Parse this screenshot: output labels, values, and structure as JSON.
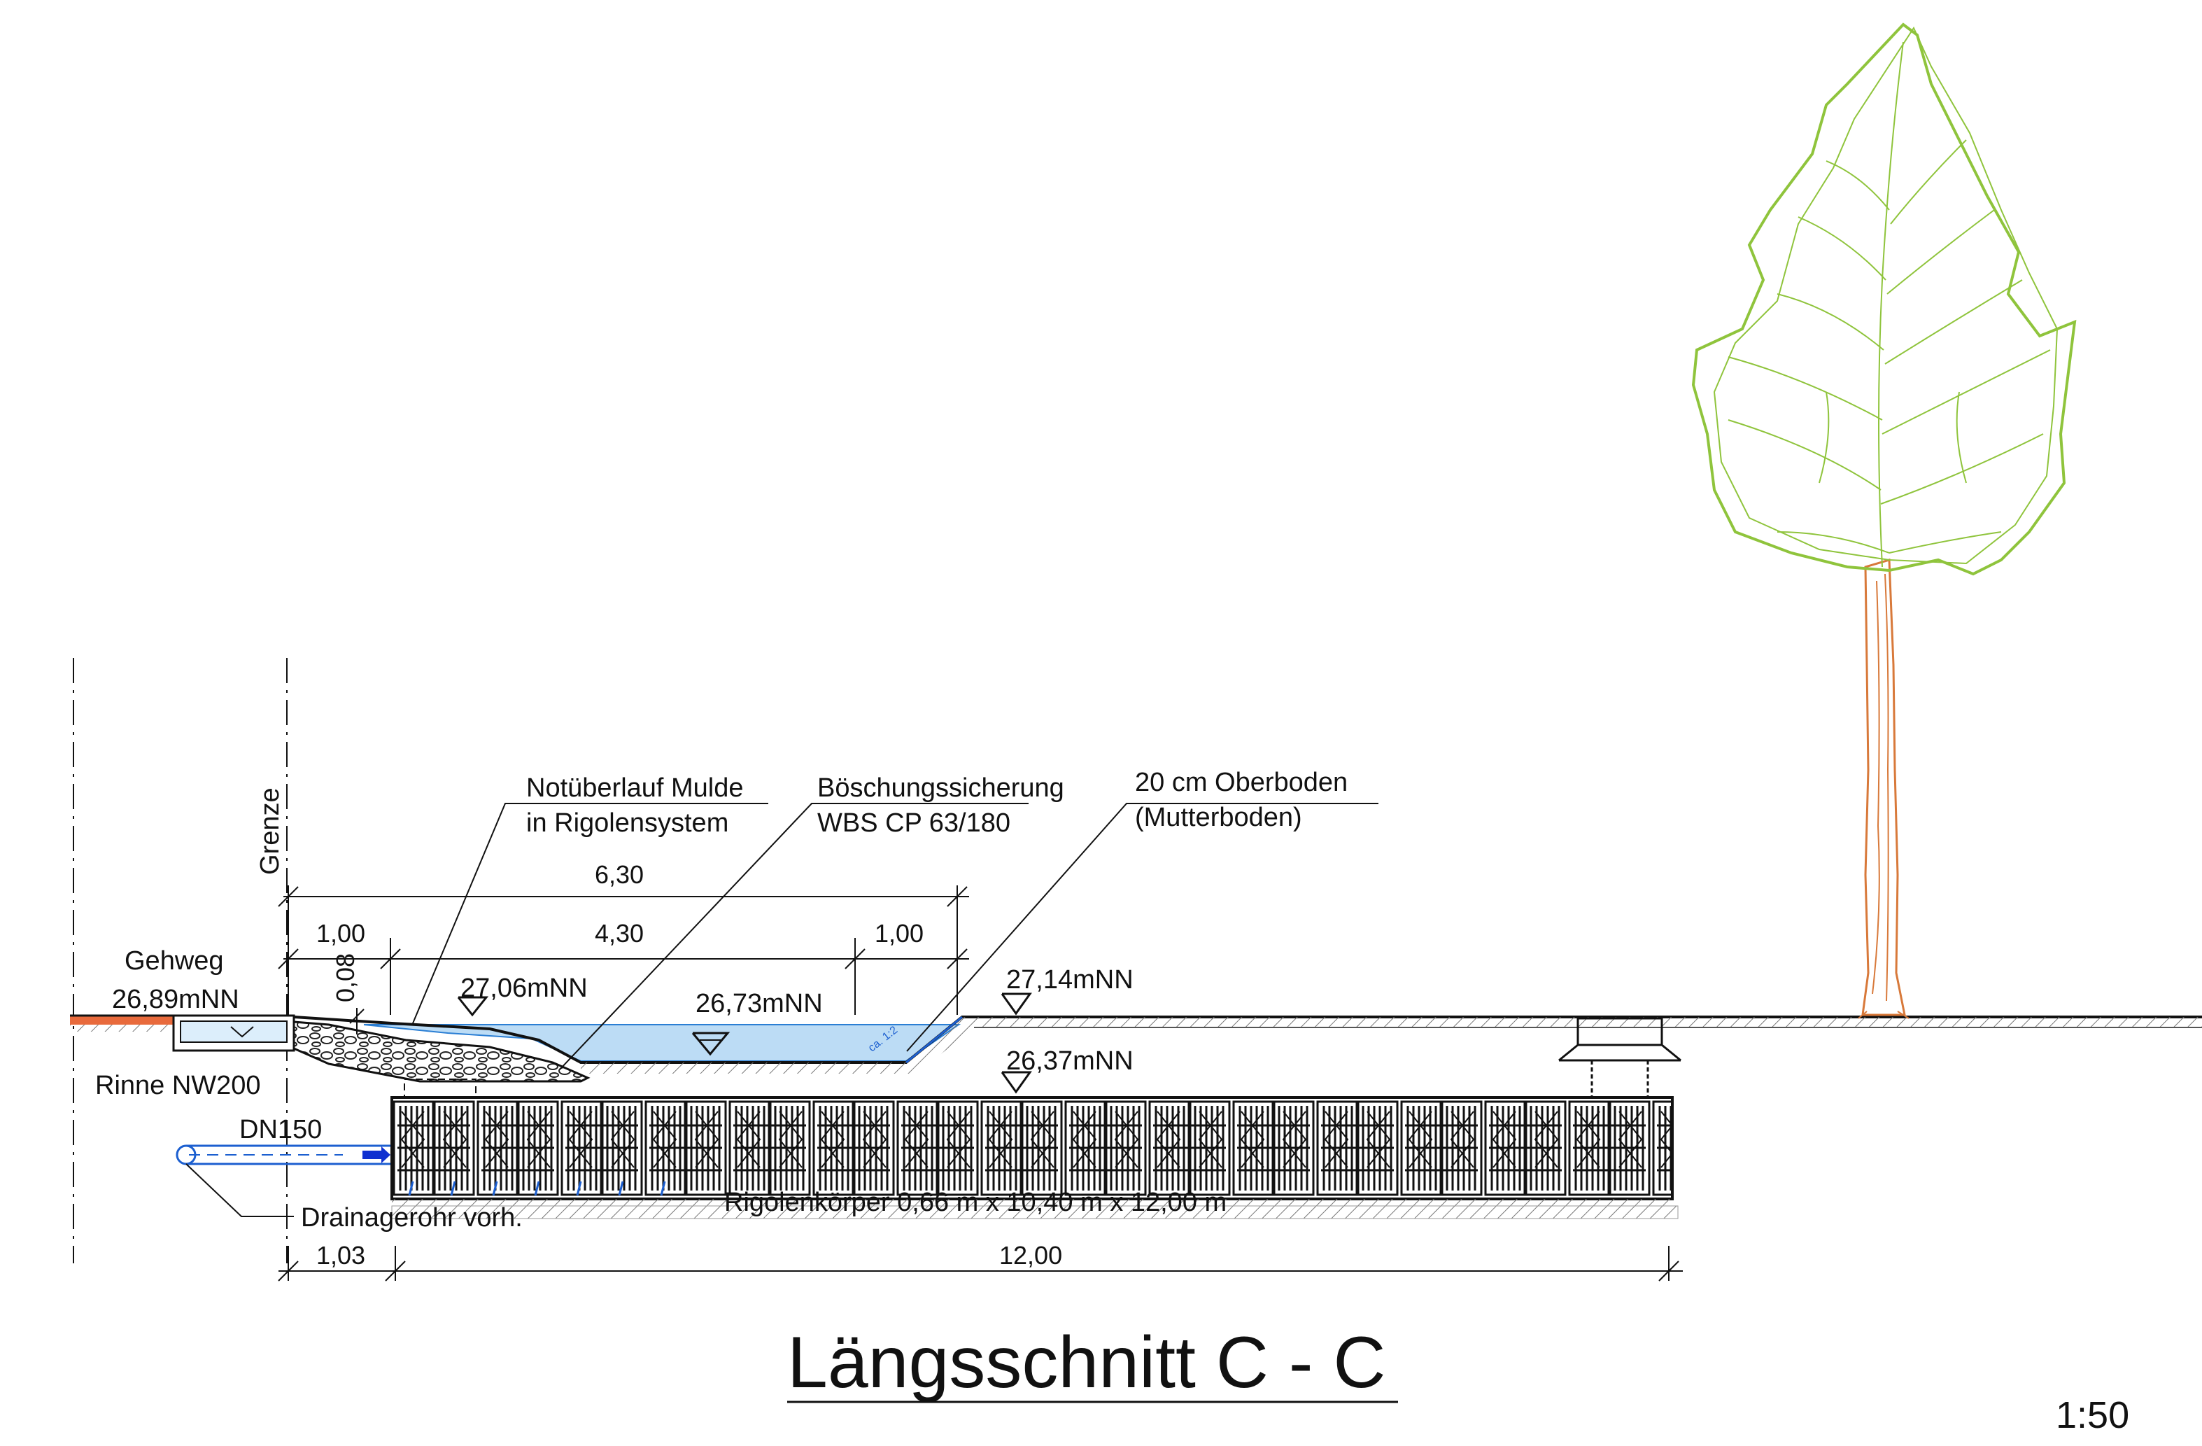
{
  "title": "Längsschnitt C - C",
  "scale": "1:50",
  "labels": {
    "grenze": "Grenze",
    "gehweg": "Gehweg",
    "gehweg_level": "26,89mNN",
    "rinne": "Rinne NW200",
    "dn150": "DN150",
    "drainage": "Drainagerohr vorh.",
    "notueberlauf_1": "Notüberlauf Mulde",
    "notueberlauf_2": "in Rigolensystem",
    "boeschung_1": "Böschungssicherung",
    "boeschung_2": "WBS CP 63/180",
    "oberboden_1": "20 cm Oberboden",
    "oberboden_2": "(Mutterboden)",
    "level_overflow": "27,06mNN",
    "level_swale": "26,73mNN",
    "level_ground": "27,14mNN",
    "level_rigole": "26,37mNN",
    "rigole": "Rigolenkörper 0,66 m x 10,40 m x 12,00 m",
    "slope": "ca. 1:2"
  },
  "dimensions": {
    "total": "6,30",
    "left": "1,00",
    "middle": "4,30",
    "right": "1,00",
    "depth": "0,08",
    "offset": "1,03",
    "rigole_length": "12,00"
  },
  "colors": {
    "water": "#bcdcf5",
    "water_line": "#2b7fd4",
    "paving": "#e86a3c",
    "tree_crown": "#8fc43c",
    "tree_trunk": "#d8793a",
    "arrow": "#1030d0",
    "line": "#111111"
  }
}
